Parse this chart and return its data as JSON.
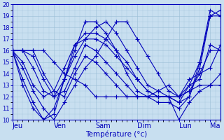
{
  "xlabel": "Température (°c)",
  "bg_color": "#c8dff0",
  "line_color": "#0000bb",
  "marker": "+",
  "markersize": 4,
  "linewidth": 0.8,
  "ylim": [
    10,
    20
  ],
  "yticks": [
    10,
    11,
    12,
    13,
    14,
    15,
    16,
    17,
    18,
    19,
    20
  ],
  "xtick_labels": [
    "Jeu",
    "Ven",
    "Sam",
    "Dim",
    "Lun",
    "Ma"
  ],
  "xtick_positions": [
    0,
    24,
    48,
    72,
    96,
    114
  ],
  "xlim": [
    0,
    120
  ],
  "grid_color": "#9bbdd6",
  "series": [
    {
      "x": [
        0,
        6,
        12,
        18,
        24,
        30,
        36,
        42,
        48,
        54,
        60,
        66,
        72,
        78,
        84,
        90,
        96,
        102,
        108,
        114,
        120
      ],
      "y": [
        16,
        14.5,
        12.5,
        11,
        10,
        11.5,
        13,
        14.5,
        15.5,
        17,
        18.5,
        18.5,
        17,
        15.5,
        14,
        12.5,
        12,
        12.5,
        13,
        13,
        13
      ]
    },
    {
      "x": [
        0,
        6,
        12,
        18,
        24,
        30,
        36,
        42,
        48,
        54,
        60,
        66,
        72,
        78,
        84,
        90,
        96,
        102,
        108,
        114,
        120
      ],
      "y": [
        16,
        13.5,
        11.5,
        10,
        11,
        13.5,
        15.5,
        17,
        18,
        18.5,
        17.5,
        16,
        14.5,
        13,
        12.5,
        12,
        12,
        12.5,
        14,
        16,
        16
      ]
    },
    {
      "x": [
        0,
        6,
        12,
        18,
        24,
        30,
        36,
        42,
        48,
        54,
        60,
        66,
        72,
        78,
        84,
        90,
        96,
        102,
        108,
        114,
        120
      ],
      "y": [
        16,
        13,
        11,
        10,
        10.5,
        13.5,
        16.5,
        17,
        17,
        16.5,
        15.5,
        14.5,
        13.5,
        12.5,
        12,
        12,
        12,
        13,
        15,
        19,
        19.5
      ]
    },
    {
      "x": [
        0,
        6,
        12,
        18,
        24,
        30,
        36,
        42,
        48,
        54,
        60,
        66,
        72,
        78,
        84,
        90,
        96,
        102,
        108,
        114,
        120
      ],
      "y": [
        16,
        15,
        13,
        12,
        12.5,
        14.5,
        16.5,
        17.5,
        17.5,
        17,
        16,
        15,
        13.5,
        12.5,
        12,
        12,
        11.5,
        12,
        14.5,
        19,
        19
      ]
    },
    {
      "x": [
        0,
        6,
        12,
        18,
        24,
        30,
        36,
        42,
        48,
        54,
        60,
        66,
        72,
        78,
        84,
        90,
        96,
        102,
        108,
        114,
        120
      ],
      "y": [
        16,
        16,
        14.5,
        12.5,
        12,
        13.5,
        16,
        18.5,
        18.5,
        17.5,
        16,
        14,
        12.5,
        12,
        11.5,
        11.5,
        11,
        12,
        15,
        19.5,
        19
      ]
    },
    {
      "x": [
        0,
        6,
        12,
        18,
        24,
        30,
        36,
        42,
        48,
        54,
        60,
        66,
        72,
        78,
        84,
        90,
        96,
        102,
        108,
        114,
        120
      ],
      "y": [
        16,
        16,
        15.5,
        13.5,
        12,
        12.5,
        14.5,
        16.5,
        16,
        15,
        14,
        13,
        12,
        12,
        12,
        12,
        10,
        11.5,
        12.5,
        13,
        14
      ]
    },
    {
      "x": [
        0,
        6,
        12,
        18,
        24,
        30,
        36,
        42,
        48,
        54,
        60,
        66,
        72,
        78,
        84,
        90,
        96,
        102,
        108,
        114,
        120
      ],
      "y": [
        16,
        16,
        16,
        14,
        12.5,
        12,
        14,
        15.5,
        15,
        14,
        13,
        12,
        12,
        12,
        12,
        12,
        11.5,
        13,
        13.5,
        16.5,
        16
      ]
    },
    {
      "x": [
        0,
        6,
        12,
        18,
        24,
        30,
        36,
        42,
        48,
        54,
        60,
        66,
        72,
        78,
        84,
        90,
        96,
        102,
        108,
        114,
        120
      ],
      "y": [
        16,
        16,
        16,
        16,
        15,
        14,
        13.5,
        13,
        12,
        12,
        12,
        12,
        12,
        12,
        12.5,
        13,
        12,
        13.5,
        14,
        14.5,
        16.5
      ]
    }
  ]
}
